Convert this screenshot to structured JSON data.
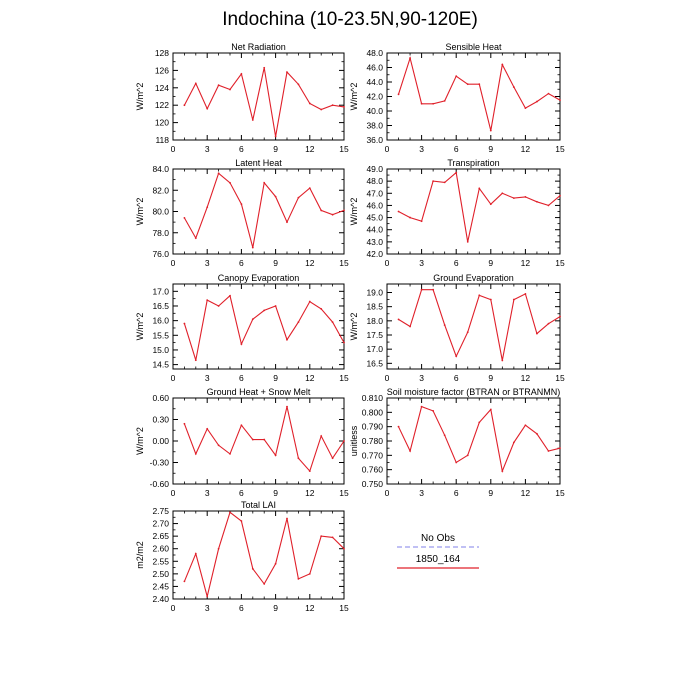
{
  "title": "Indochina (10-23.5N,90-120E)",
  "legend": {
    "entries": [
      {
        "label": "No Obs",
        "color": "#9a9aee",
        "style": "dashed"
      },
      {
        "label": "1850_164",
        "color": "#e0202a",
        "style": "solid"
      }
    ]
  },
  "colors": {
    "series": "#e0202a",
    "obs": "#9a9aee"
  },
  "chart_data": [
    {
      "type": "line",
      "title": "Net Radiation",
      "ylabel": "W/m^2",
      "xlim": [
        0,
        15
      ],
      "ylim": [
        118,
        128
      ],
      "xticks": [
        0,
        3,
        6,
        9,
        12,
        15
      ],
      "yticks": [
        118,
        120,
        122,
        124,
        126,
        128
      ],
      "ytick_labels": [
        "118",
        "120",
        "122",
        "124",
        "126",
        "128"
      ],
      "series": [
        {
          "name": "1850_164",
          "x": [
            1,
            2,
            3,
            4,
            5,
            6,
            7,
            8,
            9,
            10,
            11,
            12,
            13,
            14,
            15
          ],
          "values": [
            122.0,
            124.5,
            121.6,
            124.3,
            123.8,
            125.6,
            120.3,
            126.3,
            118.4,
            125.8,
            124.4,
            122.2,
            121.5,
            122.0,
            121.8
          ]
        }
      ]
    },
    {
      "type": "line",
      "title": "Sensible Heat",
      "ylabel": "W/m^2",
      "xlim": [
        0,
        15
      ],
      "ylim": [
        36,
        48
      ],
      "xticks": [
        0,
        3,
        6,
        9,
        12,
        15
      ],
      "yticks": [
        36,
        38,
        40,
        42,
        44,
        46,
        48
      ],
      "ytick_labels": [
        "36.0",
        "38.0",
        "40.0",
        "42.0",
        "44.0",
        "46.0",
        "48.0"
      ],
      "series": [
        {
          "name": "1850_164",
          "x": [
            1,
            2,
            3,
            4,
            5,
            6,
            7,
            8,
            9,
            10,
            11,
            12,
            13,
            14,
            15
          ],
          "values": [
            42.3,
            47.3,
            41.0,
            41.0,
            41.4,
            44.8,
            43.7,
            43.7,
            37.3,
            46.4,
            43.3,
            40.4,
            41.3,
            42.4,
            41.5
          ]
        }
      ]
    },
    {
      "type": "line",
      "title": "Latent Heat",
      "ylabel": "W/m^2",
      "xlim": [
        0,
        15
      ],
      "ylim": [
        76,
        84
      ],
      "xticks": [
        0,
        3,
        6,
        9,
        12,
        15
      ],
      "yticks": [
        76,
        78,
        80,
        82,
        84
      ],
      "ytick_labels": [
        "76.0",
        "78.0",
        "80.0",
        "82.0",
        "84.0"
      ],
      "series": [
        {
          "name": "1850_164",
          "x": [
            1,
            2,
            3,
            4,
            5,
            6,
            7,
            8,
            9,
            10,
            11,
            12,
            13,
            14,
            15
          ],
          "values": [
            79.4,
            77.5,
            80.4,
            83.6,
            82.7,
            80.7,
            76.6,
            82.7,
            81.4,
            79.0,
            81.3,
            82.2,
            80.1,
            79.7,
            80.1
          ]
        }
      ]
    },
    {
      "type": "line",
      "title": "Transpiration",
      "ylabel": "W/m^2",
      "xlim": [
        0,
        15
      ],
      "ylim": [
        42,
        49
      ],
      "xticks": [
        0,
        3,
        6,
        9,
        12,
        15
      ],
      "yticks": [
        42,
        43,
        44,
        45,
        46,
        47,
        48,
        49
      ],
      "ytick_labels": [
        "42.0",
        "43.0",
        "44.0",
        "45.0",
        "46.0",
        "47.0",
        "48.0",
        "49.0"
      ],
      "series": [
        {
          "name": "1850_164",
          "x": [
            1,
            2,
            3,
            4,
            5,
            6,
            7,
            8,
            9,
            10,
            11,
            12,
            13,
            14,
            15
          ],
          "values": [
            45.5,
            45.0,
            44.7,
            48.0,
            47.9,
            48.7,
            43.0,
            47.4,
            46.1,
            47.0,
            46.6,
            46.7,
            46.3,
            46.0,
            46.8
          ]
        }
      ]
    },
    {
      "type": "line",
      "title": "Canopy Evaporation",
      "ylabel": "W/m^2",
      "xlim": [
        0,
        15
      ],
      "ylim": [
        14.35,
        17.25
      ],
      "xticks": [
        0,
        3,
        6,
        9,
        12,
        15
      ],
      "yticks": [
        14.5,
        15.0,
        15.5,
        16.0,
        16.5,
        17.0
      ],
      "ytick_labels": [
        "14.5",
        "15.0",
        "15.5",
        "16.0",
        "16.5",
        "17.0"
      ],
      "series": [
        {
          "name": "1850_164",
          "x": [
            1,
            2,
            3,
            4,
            5,
            6,
            7,
            8,
            9,
            10,
            11,
            12,
            13,
            14,
            15
          ],
          "values": [
            15.9,
            14.65,
            16.7,
            16.5,
            16.85,
            15.2,
            16.05,
            16.35,
            16.5,
            15.35,
            15.95,
            16.65,
            16.4,
            15.95,
            15.25
          ]
        }
      ]
    },
    {
      "type": "line",
      "title": "Ground Evaporation",
      "ylabel": "W/m^2",
      "xlim": [
        0,
        15
      ],
      "ylim": [
        16.3,
        19.3
      ],
      "xticks": [
        0,
        3,
        6,
        9,
        12,
        15
      ],
      "yticks": [
        16.5,
        17.0,
        17.5,
        18.0,
        18.5,
        19.0
      ],
      "ytick_labels": [
        "16.5",
        "17.0",
        "17.5",
        "18.0",
        "18.5",
        "19.0"
      ],
      "series": [
        {
          "name": "1850_164",
          "x": [
            1,
            2,
            3,
            4,
            5,
            6,
            7,
            8,
            9,
            10,
            11,
            12,
            13,
            14,
            15
          ],
          "values": [
            18.05,
            17.8,
            19.1,
            19.1,
            17.85,
            16.75,
            17.6,
            18.9,
            18.75,
            16.6,
            18.75,
            18.95,
            17.55,
            17.9,
            18.15
          ]
        }
      ]
    },
    {
      "type": "line",
      "title": "Ground Heat + Snow Melt",
      "ylabel": "W/m^2",
      "xlim": [
        0,
        15
      ],
      "ylim": [
        -0.6,
        0.6
      ],
      "xticks": [
        0,
        3,
        6,
        9,
        12,
        15
      ],
      "yticks": [
        -0.6,
        -0.3,
        0.0,
        0.3,
        0.6
      ],
      "ytick_labels": [
        "-0.60",
        "-0.30",
        "0.00",
        "0.30",
        "0.60"
      ],
      "series": [
        {
          "name": "1850_164",
          "x": [
            1,
            2,
            3,
            4,
            5,
            6,
            7,
            8,
            9,
            10,
            11,
            12,
            13,
            14,
            15
          ],
          "values": [
            0.24,
            -0.18,
            0.17,
            -0.06,
            -0.18,
            0.22,
            0.02,
            0.02,
            -0.2,
            0.48,
            -0.24,
            -0.42,
            0.07,
            -0.24,
            0.0
          ]
        }
      ]
    },
    {
      "type": "line",
      "title": "Soil moisture factor (BTRAN or BTRANMN)",
      "ylabel": "unitless",
      "xlim": [
        0,
        15
      ],
      "ylim": [
        0.75,
        0.81
      ],
      "xticks": [
        0,
        3,
        6,
        9,
        12,
        15
      ],
      "yticks": [
        0.75,
        0.76,
        0.77,
        0.78,
        0.79,
        0.8,
        0.81
      ],
      "ytick_labels": [
        "0.750",
        "0.760",
        "0.770",
        "0.780",
        "0.790",
        "0.800",
        "0.810"
      ],
      "series": [
        {
          "name": "1850_164",
          "x": [
            1,
            2,
            3,
            4,
            5,
            6,
            7,
            8,
            9,
            10,
            11,
            12,
            13,
            14,
            15
          ],
          "values": [
            0.79,
            0.773,
            0.804,
            0.801,
            0.784,
            0.765,
            0.77,
            0.793,
            0.802,
            0.759,
            0.779,
            0.791,
            0.785,
            0.773,
            0.775
          ]
        }
      ]
    },
    {
      "type": "line",
      "title": "Total LAI",
      "ylabel": "m2/m2",
      "xlim": [
        0,
        15
      ],
      "ylim": [
        2.4,
        2.75
      ],
      "xticks": [
        0,
        3,
        6,
        9,
        12,
        15
      ],
      "yticks": [
        2.4,
        2.45,
        2.5,
        2.55,
        2.6,
        2.65,
        2.7,
        2.75
      ],
      "ytick_labels": [
        "2.40",
        "2.45",
        "2.50",
        "2.55",
        "2.60",
        "2.65",
        "2.70",
        "2.75"
      ],
      "series": [
        {
          "name": "1850_164",
          "x": [
            1,
            2,
            3,
            4,
            5,
            6,
            7,
            8,
            9,
            10,
            11,
            12,
            13,
            14,
            15
          ],
          "values": [
            2.47,
            2.58,
            2.41,
            2.6,
            2.745,
            2.71,
            2.52,
            2.46,
            2.54,
            2.72,
            2.48,
            2.5,
            2.65,
            2.645,
            2.6
          ]
        }
      ]
    }
  ]
}
